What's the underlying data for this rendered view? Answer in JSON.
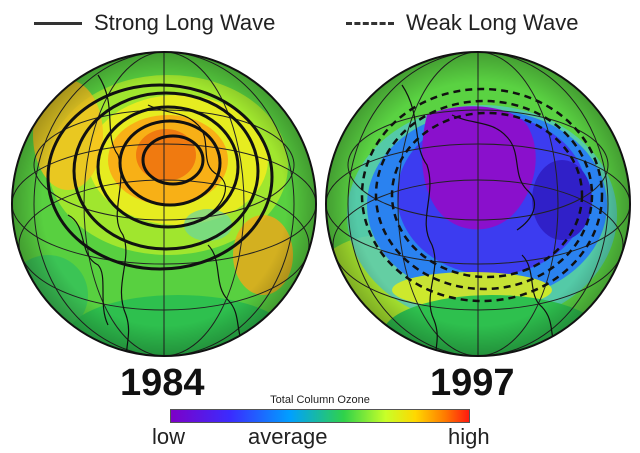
{
  "legend": {
    "strong": "Strong Long Wave",
    "weak": "Weak Long Wave"
  },
  "years": {
    "left": "1984",
    "right": "1997"
  },
  "scale": {
    "title": "Total Column Ozone",
    "low": "low",
    "average": "average",
    "high": "high"
  },
  "colors": {
    "low": "#7d00c8",
    "average": "#2fd24a",
    "high": "#ff1a10"
  }
}
